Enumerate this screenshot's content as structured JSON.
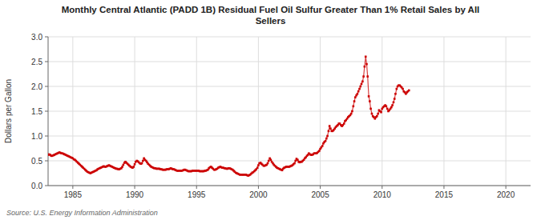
{
  "chart_data": {
    "type": "line",
    "title": "Monthly Central Atlantic (PADD 1B) Residual Fuel Oil Sulfur Greater Than 1% Retail Sales by All\nSellers",
    "ylabel": "Dollars per Gallon",
    "annotations": [
      "Source: U.S. Energy Information Administration"
    ],
    "color": "#cc0000",
    "marker": "square",
    "line_style": "solid",
    "grid": true,
    "xlim": [
      1983,
      2022
    ],
    "ylim": [
      0.0,
      3.0
    ],
    "xticks": [
      1985,
      1990,
      1995,
      2000,
      2005,
      2010,
      2015,
      2020
    ],
    "yticks": [
      {
        "value": 0.0,
        "label": "0.0"
      },
      0.5,
      {
        "value": 1.0,
        "label": "1.0"
      },
      1.5,
      {
        "value": 2.0,
        "label": "2.0"
      },
      2.5,
      {
        "value": 3.0,
        "label": "3.0"
      }
    ],
    "x": [
      1983.0,
      1983.08,
      1983.17,
      1983.25,
      1983.33,
      1983.42,
      1983.5,
      1983.58,
      1983.67,
      1983.75,
      1983.83,
      1983.92,
      1984.0,
      1984.08,
      1984.17,
      1984.25,
      1984.33,
      1984.42,
      1984.5,
      1984.58,
      1984.67,
      1984.75,
      1984.83,
      1984.92,
      1985.0,
      1985.08,
      1985.17,
      1985.25,
      1985.33,
      1985.42,
      1985.5,
      1985.58,
      1985.67,
      1985.75,
      1985.83,
      1985.92,
      1986.0,
      1986.08,
      1986.17,
      1986.25,
      1986.33,
      1986.42,
      1986.5,
      1986.58,
      1986.67,
      1986.75,
      1986.83,
      1986.92,
      1987.0,
      1987.08,
      1987.17,
      1987.25,
      1987.33,
      1987.42,
      1987.5,
      1987.58,
      1987.67,
      1987.75,
      1987.83,
      1987.92,
      1988.0,
      1988.08,
      1988.17,
      1988.25,
      1988.33,
      1988.42,
      1988.5,
      1988.58,
      1988.67,
      1988.75,
      1988.83,
      1988.92,
      1989.0,
      1989.08,
      1989.17,
      1989.25,
      1989.33,
      1989.42,
      1989.5,
      1989.58,
      1989.67,
      1989.75,
      1989.83,
      1989.92,
      1990.0,
      1990.08,
      1990.17,
      1990.25,
      1990.33,
      1990.42,
      1990.5,
      1990.58,
      1990.67,
      1990.75,
      1990.83,
      1990.92,
      1991.0,
      1991.08,
      1991.17,
      1991.25,
      1991.33,
      1991.42,
      1991.5,
      1991.58,
      1991.67,
      1991.75,
      1991.83,
      1991.92,
      1992.0,
      1992.08,
      1992.17,
      1992.25,
      1992.33,
      1992.42,
      1992.5,
      1992.58,
      1992.67,
      1992.75,
      1992.83,
      1992.92,
      1993.0,
      1993.08,
      1993.17,
      1993.25,
      1993.33,
      1993.42,
      1993.5,
      1993.58,
      1993.67,
      1993.75,
      1993.83,
      1993.92,
      1994.0,
      1994.08,
      1994.17,
      1994.25,
      1994.33,
      1994.42,
      1994.5,
      1994.58,
      1994.67,
      1994.75,
      1994.83,
      1994.92,
      1995.0,
      1995.08,
      1995.17,
      1995.25,
      1995.33,
      1995.42,
      1995.5,
      1995.58,
      1995.67,
      1995.75,
      1995.83,
      1995.92,
      1996.0,
      1996.08,
      1996.17,
      1996.25,
      1996.33,
      1996.42,
      1996.5,
      1996.58,
      1996.67,
      1996.75,
      1996.83,
      1996.92,
      1997.0,
      1997.08,
      1997.17,
      1997.25,
      1997.33,
      1997.42,
      1997.5,
      1997.58,
      1997.67,
      1997.75,
      1997.83,
      1997.92,
      1998.0,
      1998.08,
      1998.17,
      1998.25,
      1998.33,
      1998.42,
      1998.5,
      1998.58,
      1998.67,
      1998.75,
      1998.83,
      1998.92,
      1999.0,
      1999.08,
      1999.17,
      1999.25,
      1999.33,
      1999.42,
      1999.5,
      1999.58,
      1999.67,
      1999.75,
      1999.83,
      1999.92,
      2000.0,
      2000.08,
      2000.17,
      2000.25,
      2000.33,
      2000.42,
      2000.5,
      2000.58,
      2000.67,
      2000.75,
      2000.83,
      2000.92,
      2001.0,
      2001.08,
      2001.17,
      2001.25,
      2001.33,
      2001.42,
      2001.5,
      2001.58,
      2001.67,
      2001.75,
      2001.83,
      2001.92,
      2002.0,
      2002.08,
      2002.17,
      2002.25,
      2002.33,
      2002.42,
      2002.5,
      2002.58,
      2002.67,
      2002.75,
      2002.83,
      2002.92,
      2003.0,
      2003.08,
      2003.17,
      2003.25,
      2003.33,
      2003.42,
      2003.5,
      2003.58,
      2003.67,
      2003.75,
      2003.83,
      2003.92,
      2004.0,
      2004.08,
      2004.17,
      2004.25,
      2004.33,
      2004.42,
      2004.5,
      2004.58,
      2004.67,
      2004.75,
      2004.83,
      2004.92,
      2005.0,
      2005.08,
      2005.17,
      2005.25,
      2005.33,
      2005.42,
      2005.5,
      2005.58,
      2005.67,
      2005.75,
      2005.83,
      2005.92,
      2006.0,
      2006.08,
      2006.17,
      2006.25,
      2006.33,
      2006.42,
      2006.5,
      2006.58,
      2006.67,
      2006.75,
      2006.83,
      2006.92,
      2007.0,
      2007.08,
      2007.17,
      2007.25,
      2007.33,
      2007.42,
      2007.5,
      2007.58,
      2007.67,
      2007.75,
      2007.83,
      2007.92,
      2008.0,
      2008.08,
      2008.17,
      2008.25,
      2008.33,
      2008.42,
      2008.5,
      2008.58,
      2008.67,
      2008.75,
      2008.83,
      2008.92,
      2009.0,
      2009.08,
      2009.17,
      2009.25,
      2009.33,
      2009.42,
      2009.5,
      2009.58,
      2009.67,
      2009.75,
      2009.83,
      2009.92,
      2010.0,
      2010.08,
      2010.17,
      2010.25,
      2010.33,
      2010.42,
      2010.5,
      2010.58,
      2010.67,
      2010.75,
      2010.83,
      2010.92,
      2011.0,
      2011.08,
      2011.17,
      2011.25,
      2011.33,
      2011.42,
      2011.5,
      2011.58,
      2011.67,
      2011.75,
      2011.83,
      2011.92,
      2012.0,
      2012.08,
      2012.17
    ],
    "values": [
      0.62,
      0.63,
      0.62,
      0.6,
      0.6,
      0.61,
      0.62,
      0.63,
      0.64,
      0.65,
      0.66,
      0.67,
      0.66,
      0.65,
      0.65,
      0.64,
      0.63,
      0.62,
      0.61,
      0.6,
      0.59,
      0.58,
      0.57,
      0.56,
      0.55,
      0.53,
      0.52,
      0.5,
      0.48,
      0.46,
      0.44,
      0.42,
      0.4,
      0.38,
      0.36,
      0.34,
      0.32,
      0.3,
      0.28,
      0.27,
      0.26,
      0.25,
      0.26,
      0.27,
      0.28,
      0.29,
      0.3,
      0.31,
      0.33,
      0.34,
      0.35,
      0.36,
      0.37,
      0.38,
      0.39,
      0.38,
      0.38,
      0.39,
      0.4,
      0.41,
      0.4,
      0.39,
      0.38,
      0.37,
      0.36,
      0.35,
      0.34,
      0.34,
      0.33,
      0.33,
      0.34,
      0.35,
      0.38,
      0.42,
      0.46,
      0.48,
      0.46,
      0.44,
      0.42,
      0.4,
      0.38,
      0.37,
      0.36,
      0.38,
      0.43,
      0.48,
      0.5,
      0.49,
      0.47,
      0.45,
      0.44,
      0.45,
      0.5,
      0.55,
      0.52,
      0.5,
      0.47,
      0.44,
      0.42,
      0.4,
      0.38,
      0.37,
      0.36,
      0.35,
      0.35,
      0.34,
      0.34,
      0.34,
      0.34,
      0.33,
      0.33,
      0.32,
      0.32,
      0.32,
      0.32,
      0.33,
      0.33,
      0.33,
      0.34,
      0.35,
      0.34,
      0.33,
      0.33,
      0.32,
      0.31,
      0.3,
      0.3,
      0.3,
      0.3,
      0.3,
      0.3,
      0.31,
      0.32,
      0.32,
      0.31,
      0.3,
      0.29,
      0.29,
      0.29,
      0.29,
      0.3,
      0.3,
      0.3,
      0.3,
      0.3,
      0.3,
      0.3,
      0.29,
      0.29,
      0.29,
      0.29,
      0.29,
      0.3,
      0.3,
      0.31,
      0.32,
      0.35,
      0.37,
      0.38,
      0.36,
      0.34,
      0.32,
      0.32,
      0.33,
      0.34,
      0.36,
      0.37,
      0.38,
      0.37,
      0.36,
      0.36,
      0.35,
      0.35,
      0.34,
      0.34,
      0.35,
      0.35,
      0.34,
      0.33,
      0.32,
      0.3,
      0.28,
      0.26,
      0.25,
      0.24,
      0.23,
      0.22,
      0.22,
      0.22,
      0.22,
      0.22,
      0.22,
      0.22,
      0.21,
      0.2,
      0.21,
      0.22,
      0.24,
      0.26,
      0.27,
      0.29,
      0.31,
      0.33,
      0.36,
      0.41,
      0.45,
      0.46,
      0.44,
      0.42,
      0.4,
      0.4,
      0.41,
      0.42,
      0.45,
      0.5,
      0.55,
      0.52,
      0.48,
      0.45,
      0.42,
      0.4,
      0.38,
      0.36,
      0.35,
      0.34,
      0.33,
      0.32,
      0.31,
      0.34,
      0.36,
      0.37,
      0.38,
      0.38,
      0.38,
      0.38,
      0.39,
      0.4,
      0.41,
      0.43,
      0.45,
      0.5,
      0.54,
      0.52,
      0.48,
      0.47,
      0.48,
      0.48,
      0.5,
      0.52,
      0.55,
      0.57,
      0.6,
      0.62,
      0.65,
      0.63,
      0.62,
      0.62,
      0.63,
      0.65,
      0.65,
      0.65,
      0.66,
      0.68,
      0.7,
      0.74,
      0.77,
      0.8,
      0.85,
      0.88,
      0.9,
      0.95,
      1.0,
      1.1,
      1.2,
      1.15,
      1.1,
      1.1,
      1.12,
      1.15,
      1.18,
      1.2,
      1.22,
      1.25,
      1.25,
      1.22,
      1.2,
      1.22,
      1.25,
      1.3,
      1.32,
      1.35,
      1.38,
      1.4,
      1.42,
      1.45,
      1.5,
      1.6,
      1.7,
      1.78,
      1.82,
      1.85,
      1.9,
      1.95,
      2.0,
      2.05,
      2.1,
      2.2,
      2.4,
      2.6,
      2.45,
      2.2,
      1.8,
      1.7,
      1.55,
      1.45,
      1.4,
      1.38,
      1.35,
      1.38,
      1.4,
      1.45,
      1.52,
      1.5,
      1.48,
      1.55,
      1.58,
      1.6,
      1.62,
      1.6,
      1.55,
      1.5,
      1.52,
      1.55,
      1.58,
      1.62,
      1.68,
      1.75,
      1.85,
      1.95,
      2.0,
      2.02,
      2.02,
      2.0,
      1.98,
      1.95,
      1.9,
      1.88,
      1.85,
      1.88,
      1.9,
      1.92
    ]
  }
}
